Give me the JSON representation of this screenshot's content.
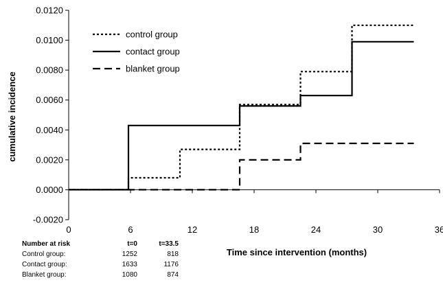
{
  "chart_data": {
    "type": "line",
    "step": true,
    "xlabel": "Time since intervention (months)",
    "ylabel": "cumulative incidence",
    "xlim": [
      0,
      36
    ],
    "ylim": [
      -0.002,
      0.012
    ],
    "x_ticks": [
      "0",
      "6",
      "12",
      "18",
      "24",
      "30",
      "36"
    ],
    "y_ticks": [
      "-0.0020",
      "0.0000",
      "0.0020",
      "0.0040",
      "0.0060",
      "0.0080",
      "0.0100",
      "0.0120"
    ],
    "legend_position": "top-left",
    "series": [
      {
        "name": "control group",
        "style": "dotted",
        "points": [
          [
            0,
            0.0
          ],
          [
            5.8,
            0.0
          ],
          [
            5.8,
            0.0008
          ],
          [
            10.8,
            0.0008
          ],
          [
            10.8,
            0.0027
          ],
          [
            16.6,
            0.0027
          ],
          [
            16.6,
            0.0057
          ],
          [
            22.5,
            0.0057
          ],
          [
            22.5,
            0.0079
          ],
          [
            27.5,
            0.0079
          ],
          [
            27.5,
            0.011
          ],
          [
            33.5,
            0.011
          ]
        ]
      },
      {
        "name": "contact group",
        "style": "solid",
        "points": [
          [
            0,
            0.0
          ],
          [
            5.8,
            0.0
          ],
          [
            5.8,
            0.0043
          ],
          [
            16.6,
            0.0043
          ],
          [
            16.6,
            0.0056
          ],
          [
            22.5,
            0.0056
          ],
          [
            22.5,
            0.0063
          ],
          [
            27.5,
            0.0063
          ],
          [
            27.5,
            0.0099
          ],
          [
            33.5,
            0.0099
          ]
        ]
      },
      {
        "name": "blanket group",
        "style": "dashed",
        "points": [
          [
            0,
            0.0
          ],
          [
            16.6,
            0.0
          ],
          [
            16.6,
            0.002
          ],
          [
            22.5,
            0.002
          ],
          [
            22.5,
            0.0031
          ],
          [
            33.5,
            0.0031
          ]
        ]
      }
    ]
  },
  "risk_table": {
    "header": [
      "Number at risk",
      "t=0",
      "t=33.5"
    ],
    "rows": [
      [
        "Control group:",
        "1252",
        "818"
      ],
      [
        "Contact group:",
        "1633",
        "1176"
      ],
      [
        "Blanket group:",
        "1080",
        "874"
      ]
    ]
  }
}
